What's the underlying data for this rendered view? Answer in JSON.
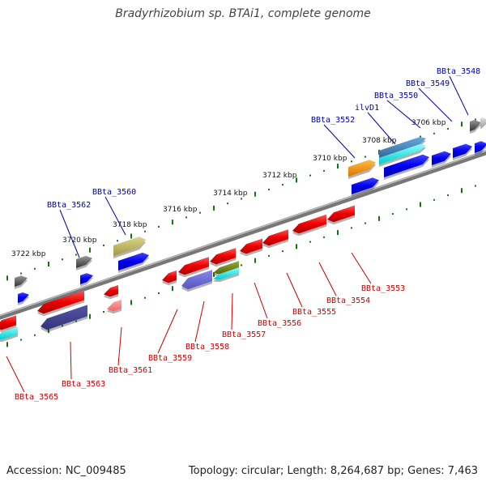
{
  "title": "Bradyrhizobium sp. BTAi1, complete genome",
  "footer": {
    "accession": "Accession: NC_009485",
    "summary": "Topology: circular; Length: 8,264,687 bp; Genes: 7,463"
  },
  "colors": {
    "forward_label": "#0000aa",
    "reverse_label": "#cc0000",
    "tick": "#117711",
    "backbone": "#888888"
  },
  "kbp_ticks": [
    {
      "label": "3706 kbp",
      "side": "top"
    },
    {
      "label": "3708 kbp",
      "side": "top"
    },
    {
      "label": "3710 kbp",
      "side": "top"
    },
    {
      "label": "3712 kbp",
      "side": "top"
    },
    {
      "label": "3714 kbp",
      "side": "top"
    },
    {
      "label": "3716 kbp",
      "side": "top"
    },
    {
      "label": "3718 kbp",
      "side": "top"
    },
    {
      "label": "3720 kbp",
      "side": "top"
    },
    {
      "label": "3722 kbp",
      "side": "top"
    }
  ],
  "forward_genes": [
    "BBta_3548",
    "BBta_3549",
    "BBta_3550",
    "ilvD1",
    "BBta_3552",
    "BBta_3560",
    "BBta_3562"
  ],
  "reverse_genes": [
    "BBta_3553",
    "BBta_3554",
    "BBta_3555",
    "BBta_3556",
    "BBta_3557",
    "BBta_3558",
    "BBta_3559",
    "BBta_3561",
    "BBta_3563",
    "BBta_3565"
  ]
}
